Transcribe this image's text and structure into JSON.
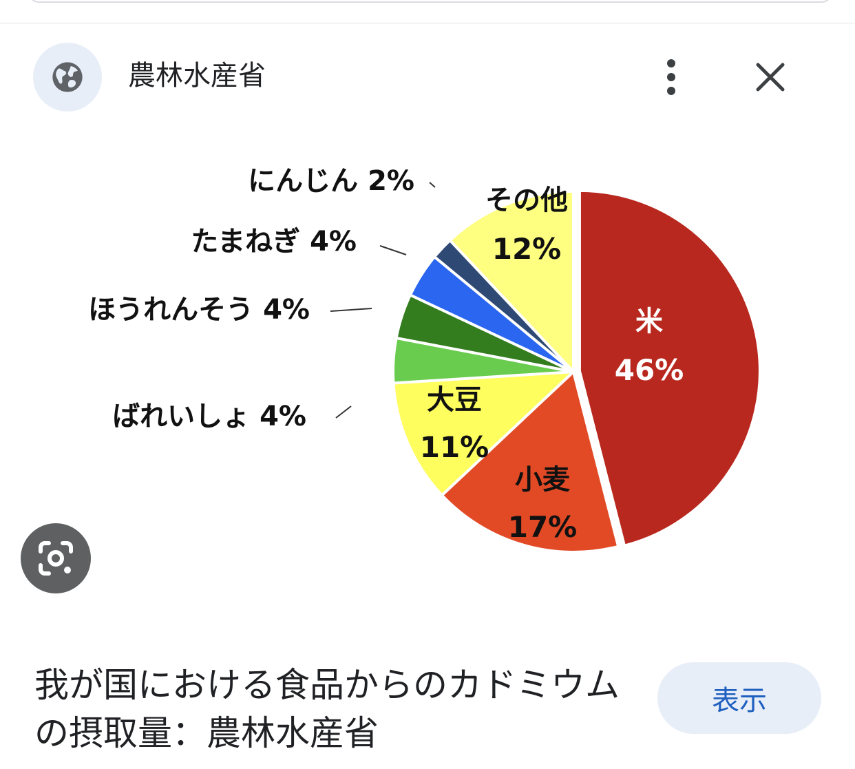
{
  "header": {
    "site_name": "農林水産省",
    "site_icon": "globe-icon",
    "more_icon": "more-vertical-icon",
    "close_icon": "close-icon"
  },
  "chart_data": {
    "type": "pie",
    "unit": "%",
    "slices": [
      {
        "label": "米",
        "value": 46,
        "color": "#b8281e"
      },
      {
        "label": "小麦",
        "value": 17,
        "color": "#e24a26"
      },
      {
        "label": "大豆",
        "value": 11,
        "color": "#fefe5e"
      },
      {
        "label": "ばれいしょ",
        "value": 4,
        "color": "#6acc4e"
      },
      {
        "label": "ほうれんそう",
        "value": 4,
        "color": "#337d1e"
      },
      {
        "label": "たまねぎ",
        "value": 4,
        "color": "#2a66f0"
      },
      {
        "label": "にんじん",
        "value": 2,
        "color": "#2e4a74"
      },
      {
        "label": "その他",
        "value": 12,
        "color": "#fefe80"
      }
    ]
  },
  "lens_icon": "lens-icon",
  "caption": "我が国における食品からのカドミウムの摂取量：農林水産省",
  "actions": {
    "show_label": "表示"
  }
}
